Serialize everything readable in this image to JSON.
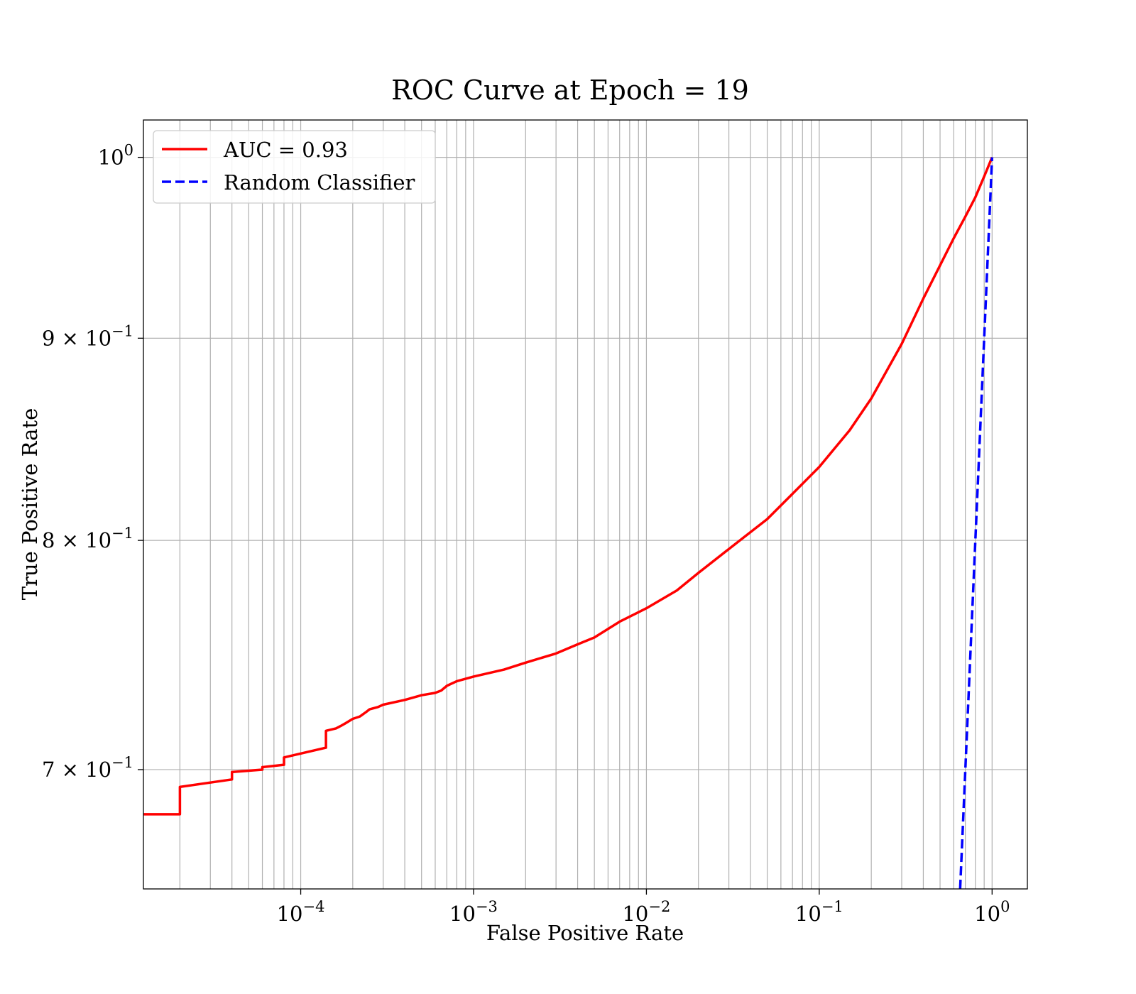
{
  "chart_data": {
    "type": "line",
    "title": "ROC Curve at Epoch = 19",
    "xlabel": "False Positive Rate",
    "ylabel": "True Positive Rate",
    "xscale": "log",
    "yscale": "log",
    "xlim": [
      1.23e-05,
      1.6
    ],
    "ylim": [
      0.653,
      1.022
    ],
    "grid": "on (major and minor)",
    "legend_position": "upper-left",
    "x_ticks": [
      {
        "value": 0.0001,
        "base": "10",
        "exp": "−4"
      },
      {
        "value": 0.001,
        "base": "10",
        "exp": "−3"
      },
      {
        "value": 0.01,
        "base": "10",
        "exp": "−2"
      },
      {
        "value": 0.1,
        "base": "10",
        "exp": "−1"
      },
      {
        "value": 1,
        "base": "10",
        "exp": "0"
      }
    ],
    "y_ticks": [
      {
        "value": 1.0,
        "base": "10",
        "exp": "0",
        "mult": ""
      },
      {
        "value": 0.9,
        "base": "10",
        "exp": "−1",
        "mult": "9 × "
      },
      {
        "value": 0.8,
        "base": "10",
        "exp": "−1",
        "mult": "8 × "
      },
      {
        "value": 0.7,
        "base": "10",
        "exp": "−1",
        "mult": "7 × "
      }
    ],
    "series": [
      {
        "name": "AUC = 0.93",
        "color": "#ff0000",
        "style": "solid",
        "x": [
          1.23e-05,
          2e-05,
          2e-05,
          4e-05,
          4e-05,
          6e-05,
          6e-05,
          8e-05,
          8e-05,
          0.00014,
          0.00014,
          0.00016,
          0.00017,
          0.00018,
          0.0002,
          0.00022,
          0.00024,
          0.00025,
          0.00028,
          0.0003,
          0.0004,
          0.0005,
          0.0006,
          0.00065,
          0.0007,
          0.0008,
          0.001,
          0.0015,
          0.002,
          0.003,
          0.004,
          0.005,
          0.007,
          0.01,
          0.015,
          0.02,
          0.03,
          0.05,
          0.07,
          0.1,
          0.15,
          0.2,
          0.3,
          0.4,
          0.5,
          0.6,
          0.7,
          0.8,
          0.9,
          1.0
        ],
        "y": [
          0.682,
          0.682,
          0.693,
          0.696,
          0.699,
          0.7,
          0.701,
          0.702,
          0.705,
          0.709,
          0.716,
          0.717,
          0.718,
          0.719,
          0.721,
          0.722,
          0.724,
          0.725,
          0.726,
          0.727,
          0.729,
          0.731,
          0.732,
          0.733,
          0.735,
          0.737,
          0.739,
          0.742,
          0.745,
          0.749,
          0.753,
          0.756,
          0.763,
          0.769,
          0.777,
          0.785,
          0.796,
          0.81,
          0.822,
          0.835,
          0.853,
          0.869,
          0.897,
          0.921,
          0.939,
          0.954,
          0.966,
          0.977,
          0.989,
          1.0
        ]
      },
      {
        "name": "Random Classifier",
        "color": "#0000ff",
        "style": "dashed",
        "x": [
          0.653,
          1.0
        ],
        "y": [
          0.653,
          1.0
        ]
      }
    ]
  }
}
